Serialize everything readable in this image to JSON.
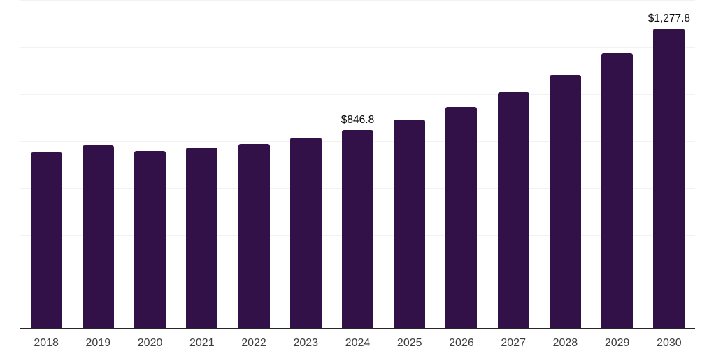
{
  "chart_data": {
    "type": "bar",
    "title": "",
    "xlabel": "",
    "ylabel": "",
    "categories": [
      "2018",
      "2019",
      "2020",
      "2021",
      "2022",
      "2023",
      "2024",
      "2025",
      "2026",
      "2027",
      "2028",
      "2029",
      "2030"
    ],
    "values": [
      752,
      780,
      757,
      772,
      788,
      814,
      846.8,
      891,
      944,
      1008,
      1081,
      1174,
      1277.8
    ],
    "data_labels": [
      "",
      "",
      "",
      "",
      "",
      "",
      "$846.8",
      "",
      "",
      "",
      "",
      "",
      "$1,277.8"
    ],
    "ylim": [
      0,
      1400
    ],
    "gridline_step": 200,
    "grid": "horizontal-only",
    "legend": "none",
    "colors": {
      "bar": "#321148",
      "gridline": "#f2f2f2",
      "axis_line": "#262626",
      "tick_label": "#3d3d3d",
      "data_label": "#0b0b0b",
      "background": "#ffffff"
    }
  }
}
